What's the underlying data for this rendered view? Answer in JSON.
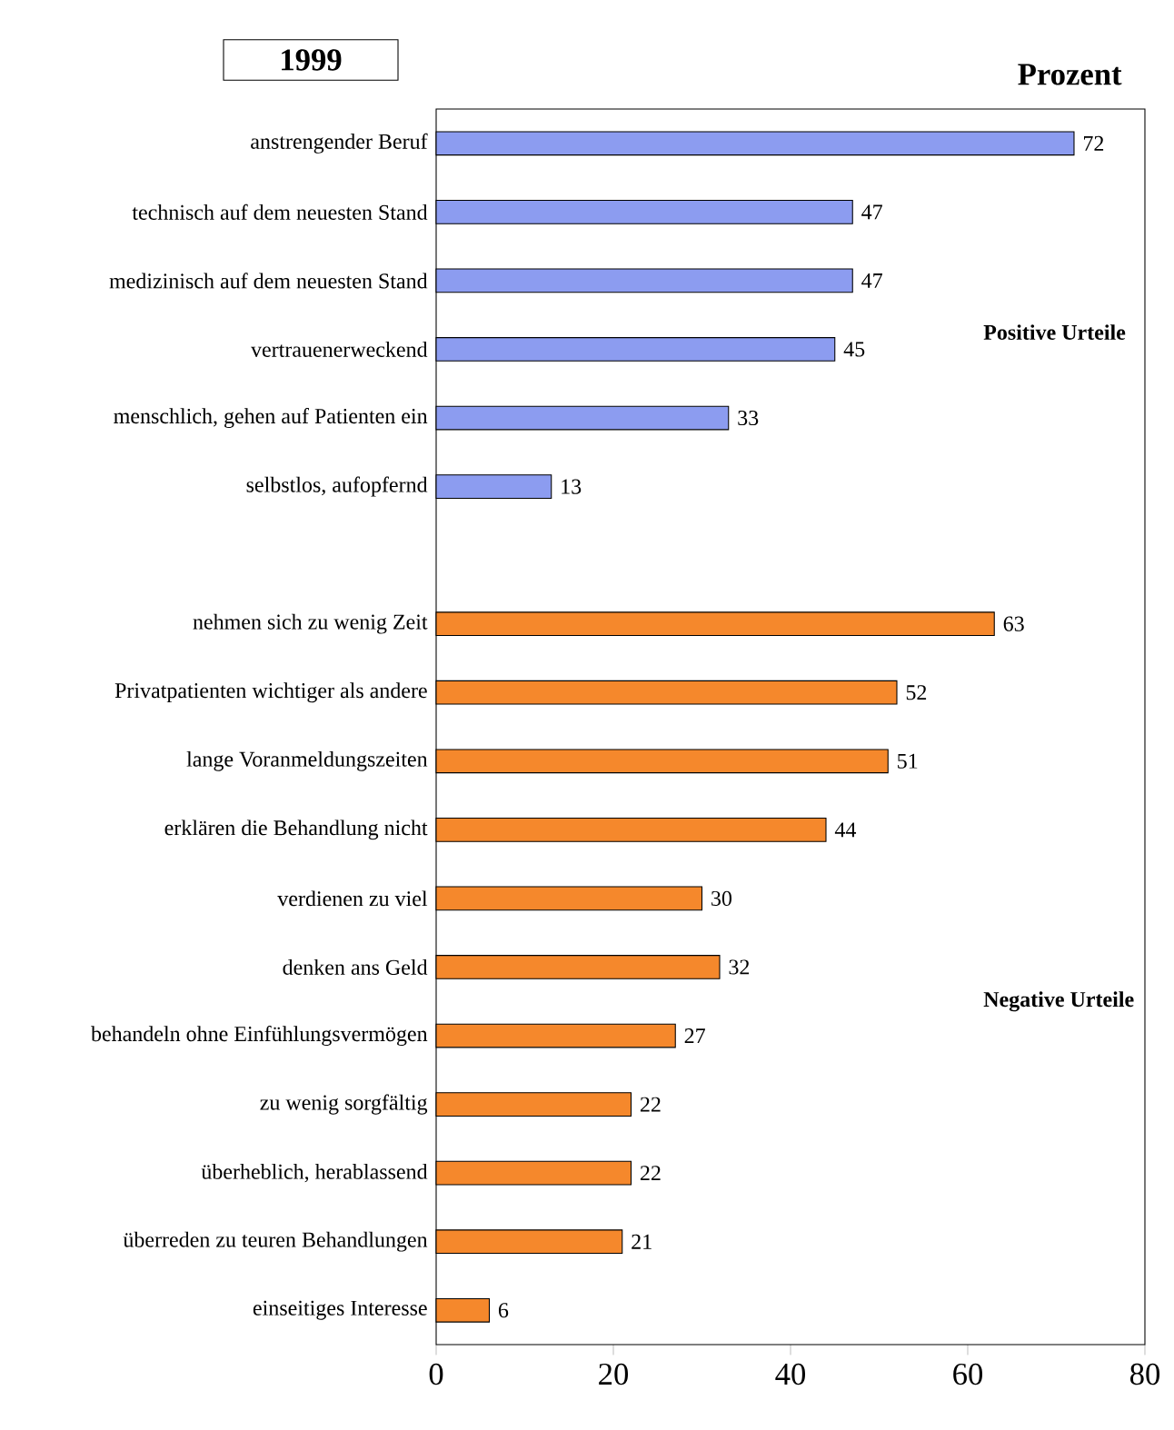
{
  "chart_data": {
    "type": "bar",
    "orientation": "horizontal",
    "title": "1999",
    "xlabel": "Prozent",
    "categories": [
      "anstrengender Beruf",
      "technisch auf dem neuesten Stand",
      "medizinisch auf dem neuesten Stand",
      "vertrauenerweckend",
      "menschlich, gehen auf Patienten ein",
      "selbstlos, aufopfernd",
      null,
      "nehmen sich zu wenig Zeit",
      "Privatpatienten wichtiger als andere",
      "lange Voranmeldungszeiten",
      "erklären die Behandlung nicht",
      "verdienen zu viel",
      "denken ans Geld",
      "behandeln ohne Einfühlungsvermögen",
      "zu wenig sorgfältig",
      "überheblich, herablassend",
      "überreden zu teuren Behandlungen",
      "einseitiges Interesse"
    ],
    "values": [
      72,
      47,
      47,
      45,
      33,
      13,
      null,
      63,
      52,
      51,
      44,
      30,
      32,
      27,
      22,
      22,
      21,
      6
    ],
    "colors": [
      "#8c9cf0",
      "#8c9cf0",
      "#8c9cf0",
      "#8c9cf0",
      "#8c9cf0",
      "#8c9cf0",
      null,
      "#f5882c",
      "#f5882c",
      "#f5882c",
      "#f5882c",
      "#f5882c",
      "#f5882c",
      "#f5882c",
      "#f5882c",
      "#f5882c",
      "#f5882c",
      "#f5882c"
    ],
    "data_labels": true,
    "xlim": [
      0,
      80
    ],
    "xticks": [
      0,
      20,
      40,
      60,
      80
    ],
    "annotations": [
      "Positive Urteile",
      "Negative Urteile"
    ]
  }
}
